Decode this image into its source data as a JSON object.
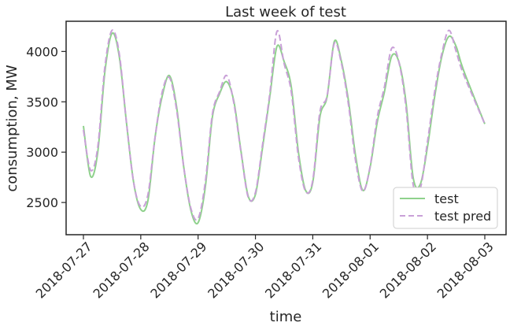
{
  "chart_data": {
    "type": "line",
    "title": "Last week of test",
    "xlabel": "time",
    "ylabel": "consumption, MW",
    "x_tick_labels": [
      "2018-07-27",
      "2018-07-28",
      "2018-07-29",
      "2018-07-30",
      "2018-07-31",
      "2018-08-01",
      "2018-08-02",
      "2018-08-03"
    ],
    "y_ticks": [
      2500,
      3000,
      3500,
      4000
    ],
    "xlim": [
      "2018-07-27",
      "2018-08-03"
    ],
    "ylim": [
      2180,
      4300
    ],
    "grid": false,
    "legend_position": "lower right",
    "series": [
      {
        "name": "test",
        "color": "#8fd18c",
        "style": "solid",
        "points": [
          [
            "2018-07-27 00:00",
            3260
          ],
          [
            "2018-07-27 03:00",
            2760
          ],
          [
            "2018-07-27 06:00",
            3000
          ],
          [
            "2018-07-27 09:00",
            3800
          ],
          [
            "2018-07-27 12:00",
            4180
          ],
          [
            "2018-07-27 15:00",
            3950
          ],
          [
            "2018-07-27 18:00",
            3300
          ],
          [
            "2018-07-27 21:00",
            2700
          ],
          [
            "2018-07-28 00:00",
            2430
          ],
          [
            "2018-07-28 03:00",
            2520
          ],
          [
            "2018-07-28 06:00",
            3150
          ],
          [
            "2018-07-28 09:00",
            3560
          ],
          [
            "2018-07-28 12:00",
            3760
          ],
          [
            "2018-07-28 15:00",
            3450
          ],
          [
            "2018-07-28 18:00",
            2850
          ],
          [
            "2018-07-28 21:00",
            2420
          ],
          [
            "2018-07-29 00:00",
            2300
          ],
          [
            "2018-07-29 03:00",
            2650
          ],
          [
            "2018-07-29 06:00",
            3350
          ],
          [
            "2018-07-29 09:00",
            3580
          ],
          [
            "2018-07-29 12:00",
            3700
          ],
          [
            "2018-07-29 15:00",
            3500
          ],
          [
            "2018-07-29 18:00",
            3000
          ],
          [
            "2018-07-29 21:00",
            2560
          ],
          [
            "2018-07-30 00:00",
            2580
          ],
          [
            "2018-07-30 03:00",
            3050
          ],
          [
            "2018-07-30 06:00",
            3550
          ],
          [
            "2018-07-30 09:00",
            4050
          ],
          [
            "2018-07-30 12:00",
            3900
          ],
          [
            "2018-07-30 15:00",
            3650
          ],
          [
            "2018-07-30 18:00",
            3000
          ],
          [
            "2018-07-30 21:00",
            2620
          ],
          [
            "2018-07-31 00:00",
            2700
          ],
          [
            "2018-07-31 03:00",
            3350
          ],
          [
            "2018-07-31 06:00",
            3550
          ],
          [
            "2018-07-31 09:00",
            4100
          ],
          [
            "2018-07-31 12:00",
            3900
          ],
          [
            "2018-07-31 15:00",
            3500
          ],
          [
            "2018-07-31 18:00",
            2950
          ],
          [
            "2018-07-31 21:00",
            2620
          ],
          [
            "2018-08-01 00:00",
            2850
          ],
          [
            "2018-08-01 03:00",
            3300
          ],
          [
            "2018-08-01 06:00",
            3600
          ],
          [
            "2018-08-01 09:00",
            3950
          ],
          [
            "2018-08-01 12:00",
            3900
          ],
          [
            "2018-08-01 15:00",
            3500
          ],
          [
            "2018-08-01 18:00",
            2750
          ],
          [
            "2018-08-01 21:00",
            2680
          ],
          [
            "2018-08-02 00:00",
            3050
          ],
          [
            "2018-08-02 03:00",
            3550
          ],
          [
            "2018-08-02 06:00",
            3950
          ],
          [
            "2018-08-02 09:00",
            4150
          ],
          [
            "2018-08-02 12:00",
            4050
          ],
          [
            "2018-08-02 15:00",
            3820
          ],
          [
            "2018-08-03 00:00",
            3280
          ]
        ]
      },
      {
        "name": "test pred",
        "color": "#c9a0d8",
        "style": "dashed",
        "points": [
          [
            "2018-07-27 00:00",
            3220
          ],
          [
            "2018-07-27 03:00",
            2820
          ],
          [
            "2018-07-27 06:00",
            3050
          ],
          [
            "2018-07-27 09:00",
            3850
          ],
          [
            "2018-07-27 12:00",
            4210
          ],
          [
            "2018-07-27 15:00",
            3980
          ],
          [
            "2018-07-27 18:00",
            3300
          ],
          [
            "2018-07-27 21:00",
            2700
          ],
          [
            "2018-07-28 00:00",
            2460
          ],
          [
            "2018-07-28 03:00",
            2580
          ],
          [
            "2018-07-28 06:00",
            3150
          ],
          [
            "2018-07-28 09:00",
            3600
          ],
          [
            "2018-07-28 12:00",
            3740
          ],
          [
            "2018-07-28 15:00",
            3420
          ],
          [
            "2018-07-28 18:00",
            2850
          ],
          [
            "2018-07-28 21:00",
            2440
          ],
          [
            "2018-07-29 00:00",
            2340
          ],
          [
            "2018-07-29 03:00",
            2700
          ],
          [
            "2018-07-29 06:00",
            3380
          ],
          [
            "2018-07-29 09:00",
            3600
          ],
          [
            "2018-07-29 12:00",
            3760
          ],
          [
            "2018-07-29 15:00",
            3480
          ],
          [
            "2018-07-29 18:00",
            2990
          ],
          [
            "2018-07-29 21:00",
            2550
          ],
          [
            "2018-07-30 00:00",
            2600
          ],
          [
            "2018-07-30 03:00",
            3080
          ],
          [
            "2018-07-30 06:00",
            3580
          ],
          [
            "2018-07-30 09:00",
            4200
          ],
          [
            "2018-07-30 12:00",
            3880
          ],
          [
            "2018-07-30 15:00",
            3600
          ],
          [
            "2018-07-30 18:00",
            2950
          ],
          [
            "2018-07-30 21:00",
            2610
          ],
          [
            "2018-07-31 00:00",
            2720
          ],
          [
            "2018-07-31 03:00",
            3400
          ],
          [
            "2018-07-31 06:00",
            3560
          ],
          [
            "2018-07-31 09:00",
            4080
          ],
          [
            "2018-07-31 12:00",
            3880
          ],
          [
            "2018-07-31 15:00",
            3460
          ],
          [
            "2018-07-31 18:00",
            2900
          ],
          [
            "2018-07-31 21:00",
            2610
          ],
          [
            "2018-08-01 00:00",
            2860
          ],
          [
            "2018-08-01 03:00",
            3350
          ],
          [
            "2018-08-01 06:00",
            3650
          ],
          [
            "2018-08-01 09:00",
            4030
          ],
          [
            "2018-08-01 12:00",
            3900
          ],
          [
            "2018-08-01 15:00",
            3450
          ],
          [
            "2018-08-01 18:00",
            2680
          ],
          [
            "2018-08-01 21:00",
            2640
          ],
          [
            "2018-08-02 00:00",
            3100
          ],
          [
            "2018-08-02 03:00",
            3600
          ],
          [
            "2018-08-02 06:00",
            3980
          ],
          [
            "2018-08-02 09:00",
            4210
          ],
          [
            "2018-08-02 12:00",
            4000
          ],
          [
            "2018-08-02 15:00",
            3780
          ],
          [
            "2018-08-03 00:00",
            3280
          ]
        ]
      }
    ]
  }
}
